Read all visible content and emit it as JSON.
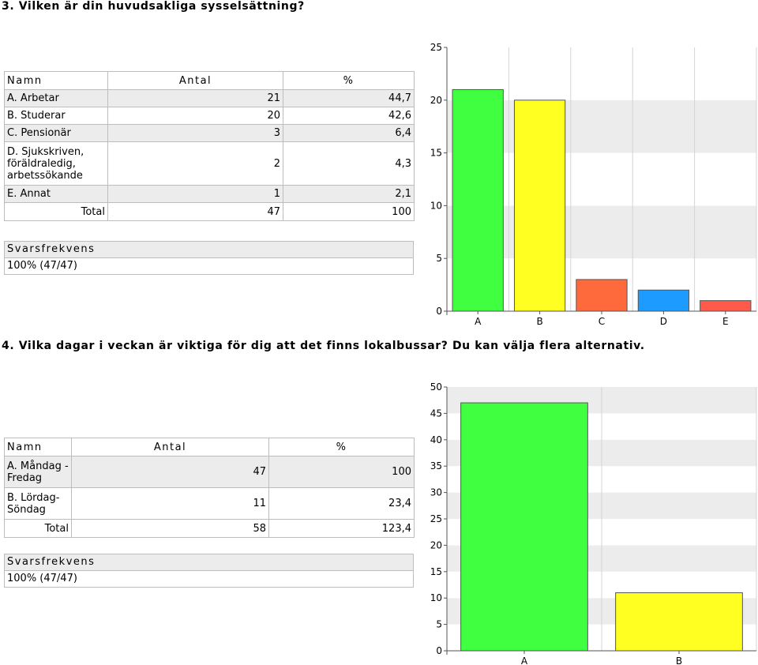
{
  "q3": {
    "title": "3. Vilken är din huvudsakliga sysselsättning?",
    "table": {
      "headers": [
        "Namn",
        "Antal",
        "%"
      ],
      "rows": [
        {
          "name": "A. Arbetar",
          "count": "21",
          "pct": "44,7"
        },
        {
          "name": "B. Studerar",
          "count": "20",
          "pct": "42,6"
        },
        {
          "name": "C. Pensionär",
          "count": "3",
          "pct": "6,4"
        },
        {
          "name": "D. Sjukskriven, föräldraledig, arbetssökande",
          "count": "2",
          "pct": "4,3"
        },
        {
          "name": "E. Annat",
          "count": "1",
          "pct": "2,1"
        }
      ],
      "total": {
        "label": "Total",
        "count": "47",
        "pct": "100"
      }
    },
    "freq": {
      "header": "Svarsfrekvens",
      "value": "100% (47/47)"
    }
  },
  "q4": {
    "title": "4. Vilka dagar i veckan är viktiga för dig att det finns lokalbussar? Du kan välja flera alternativ.",
    "table": {
      "headers": [
        "Namn",
        "Antal",
        "%"
      ],
      "rows": [
        {
          "name": "A. Måndag - Fredag",
          "count": "47",
          "pct": "100"
        },
        {
          "name": "B. Lördag-Söndag",
          "count": "11",
          "pct": "23,4"
        }
      ],
      "total": {
        "label": "Total",
        "count": "58",
        "pct": "123,4"
      }
    },
    "freq": {
      "header": "Svarsfrekvens",
      "value": "100% (47/47)"
    }
  },
  "chart_data": [
    {
      "type": "bar",
      "categories": [
        "A",
        "B",
        "C",
        "D",
        "E"
      ],
      "values": [
        21,
        20,
        3,
        2,
        1
      ],
      "colors": [
        "#40ff40",
        "#ffff22",
        "#ff6a3d",
        "#1e9bff",
        "#ff5a4a"
      ],
      "ylim": [
        0,
        25
      ],
      "yticks": [
        0,
        5,
        10,
        15,
        20,
        25
      ],
      "grid": true
    },
    {
      "type": "bar",
      "categories": [
        "A",
        "B"
      ],
      "values": [
        47,
        11
      ],
      "colors": [
        "#40ff40",
        "#ffff22"
      ],
      "ylim": [
        0,
        50
      ],
      "yticks": [
        0,
        5,
        10,
        15,
        20,
        25,
        30,
        35,
        40,
        45,
        50
      ],
      "grid": true
    }
  ]
}
